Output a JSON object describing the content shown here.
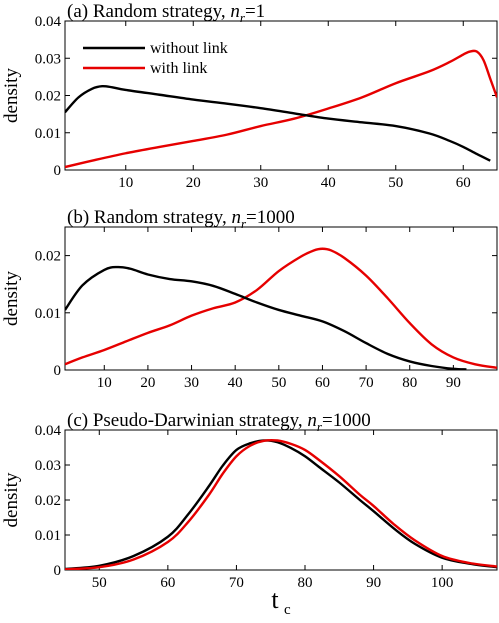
{
  "chart_data": [
    {
      "type": "line",
      "title_prefix": "(a) Random strategy, ",
      "title_var": "n",
      "title_var_sub": "r",
      "title_suffix": "=1",
      "ylabel": "density",
      "xlim": [
        1,
        65
      ],
      "ylim": [
        0,
        0.04
      ],
      "xticks": [
        10,
        20,
        30,
        40,
        50,
        60
      ],
      "yticks": [
        0,
        0.01,
        0.02,
        0.03,
        0.04
      ],
      "ytick_labels": [
        "0",
        "0.01",
        "0.02",
        "0.03",
        "0.04"
      ],
      "legend_position": "top-left",
      "series": [
        {
          "name": "without link",
          "color": "#000000",
          "x": [
            1,
            3,
            5,
            6.5,
            8,
            10,
            15,
            20,
            25,
            30,
            35,
            40,
            45,
            50,
            55,
            58,
            60,
            62,
            64
          ],
          "y": [
            0.0155,
            0.0195,
            0.0218,
            0.0225,
            0.0222,
            0.0215,
            0.0202,
            0.0189,
            0.0178,
            0.0166,
            0.0152,
            0.0138,
            0.0128,
            0.0118,
            0.0098,
            0.0078,
            0.0062,
            0.0043,
            0.0025
          ]
        },
        {
          "name": "with link",
          "color": "#e60000",
          "x": [
            1,
            5,
            10,
            15,
            20,
            25,
            30,
            35,
            40,
            45,
            50,
            55,
            58,
            60,
            61,
            62,
            63,
            64,
            65
          ],
          "y": [
            0.0008,
            0.0025,
            0.0045,
            0.0062,
            0.0078,
            0.0095,
            0.0118,
            0.0138,
            0.0165,
            0.0195,
            0.0233,
            0.0265,
            0.029,
            0.031,
            0.0318,
            0.0318,
            0.0295,
            0.0245,
            0.0195
          ]
        }
      ]
    },
    {
      "type": "line",
      "title_prefix": "(b) Random strategy, ",
      "title_var": "n",
      "title_var_sub": "r",
      "title_suffix": "=1000",
      "ylabel": "density",
      "xlim": [
        1,
        100
      ],
      "ylim": [
        0,
        0.025
      ],
      "xticks": [
        10,
        20,
        30,
        40,
        50,
        60,
        70,
        80,
        90
      ],
      "yticks": [
        0,
        0.01,
        0.02
      ],
      "ytick_labels": [
        "0",
        "0.01",
        "0.02"
      ],
      "series": [
        {
          "name": "without link",
          "color": "#000000",
          "x": [
            1,
            5,
            10,
            13,
            16,
            20,
            25,
            30,
            35,
            40,
            45,
            50,
            55,
            60,
            65,
            70,
            75,
            80,
            85,
            90,
            93
          ],
          "y": [
            0.0105,
            0.0148,
            0.0175,
            0.018,
            0.0177,
            0.0167,
            0.0159,
            0.0155,
            0.0147,
            0.0133,
            0.0118,
            0.0105,
            0.0095,
            0.0085,
            0.0068,
            0.0047,
            0.0028,
            0.0015,
            0.0007,
            0.0002,
            0.0001
          ]
        },
        {
          "name": "with link",
          "color": "#e60000",
          "x": [
            1,
            5,
            10,
            15,
            20,
            25,
            30,
            35,
            40,
            45,
            50,
            55,
            58,
            60,
            62,
            65,
            70,
            75,
            80,
            85,
            90,
            95,
            100
          ],
          "y": [
            0.001,
            0.0022,
            0.0035,
            0.005,
            0.0065,
            0.0078,
            0.0095,
            0.0108,
            0.0118,
            0.014,
            0.0173,
            0.0198,
            0.0209,
            0.0212,
            0.0209,
            0.0196,
            0.0165,
            0.0125,
            0.0082,
            0.0045,
            0.0022,
            0.001,
            0.0004
          ]
        }
      ]
    },
    {
      "type": "line",
      "title_prefix": "(c) Pseudo-Darwinian strategy, ",
      "title_var": "n",
      "title_var_sub": "r",
      "title_suffix": "=1000",
      "ylabel": "density",
      "xlabel_main": "t",
      "xlabel_sub": "c",
      "xlim": [
        45,
        108
      ],
      "ylim": [
        0,
        0.04
      ],
      "xticks": [
        50,
        60,
        70,
        80,
        90,
        100
      ],
      "yticks": [
        0,
        0.01,
        0.02,
        0.03,
        0.04
      ],
      "ytick_labels": [
        "0",
        "0.01",
        "0.02",
        "0.03",
        "0.04"
      ],
      "series": [
        {
          "name": "without link",
          "color": "#000000",
          "x": [
            45,
            50,
            55,
            60,
            63,
            66,
            68,
            70,
            72,
            74,
            76,
            78,
            80,
            82,
            85,
            88,
            90,
            93,
            96,
            100,
            104,
            108
          ],
          "y": [
            0.0003,
            0.0012,
            0.004,
            0.0095,
            0.016,
            0.024,
            0.0298,
            0.0343,
            0.0362,
            0.037,
            0.0365,
            0.0348,
            0.0325,
            0.0295,
            0.025,
            0.02,
            0.0168,
            0.0118,
            0.0075,
            0.0035,
            0.0018,
            0.0008
          ]
        },
        {
          "name": "with link",
          "color": "#e60000",
          "x": [
            45,
            50,
            55,
            60,
            63,
            66,
            68,
            70,
            72,
            74,
            76,
            78,
            80,
            82,
            85,
            88,
            90,
            93,
            96,
            100,
            104,
            108
          ],
          "y": [
            0.0002,
            0.0008,
            0.003,
            0.008,
            0.0138,
            0.0215,
            0.0275,
            0.0325,
            0.0355,
            0.0369,
            0.037,
            0.036,
            0.0343,
            0.0315,
            0.0268,
            0.0215,
            0.0183,
            0.013,
            0.0085,
            0.004,
            0.002,
            0.001
          ]
        }
      ]
    }
  ]
}
